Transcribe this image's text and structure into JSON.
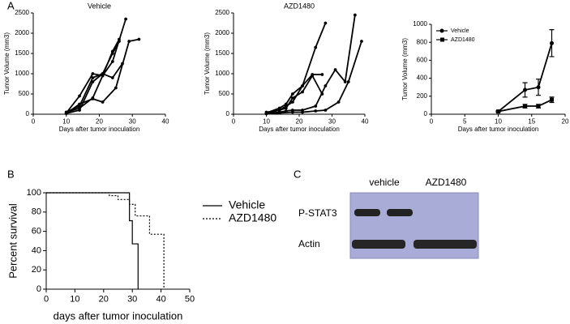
{
  "panels": {
    "a": "A",
    "b": "B",
    "c": "C"
  },
  "blot": {
    "lanes": [
      "vehicle",
      "AZD1480"
    ],
    "rows": [
      "P-STAT3",
      "Actin"
    ]
  },
  "chart_data": [
    {
      "type": "line",
      "title": "Vehicle",
      "xlabel": "Days after tumor inoculation",
      "ylabel": "Tumor Volume (mm3)",
      "xlim": [
        0,
        40
      ],
      "ylim": [
        0,
        2500
      ],
      "xticks": [
        0,
        10,
        20,
        30,
        40
      ],
      "yticks": [
        0,
        500,
        1000,
        1500,
        2000,
        2500
      ],
      "series": [
        {
          "color": "#000000",
          "marker": "circle",
          "x": [
            10,
            14,
            18,
            21,
            24,
            28
          ],
          "values": [
            50,
            150,
            400,
            950,
            1300,
            2350
          ]
        },
        {
          "color": "#000000",
          "marker": "circle",
          "x": [
            10,
            14,
            18,
            21,
            24,
            26
          ],
          "values": [
            50,
            200,
            900,
            1000,
            1500,
            1800
          ]
        },
        {
          "color": "#000000",
          "marker": "circle",
          "x": [
            10,
            14,
            18,
            21,
            24,
            26
          ],
          "values": [
            30,
            450,
            1000,
            950,
            1550,
            1850
          ]
        },
        {
          "color": "#000000",
          "marker": "circle",
          "x": [
            10,
            14,
            18,
            21,
            24,
            27
          ],
          "values": [
            20,
            100,
            800,
            1000,
            900,
            1250
          ]
        },
        {
          "color": "#000000",
          "marker": "circle",
          "x": [
            10,
            14,
            18,
            21,
            25,
            29,
            32
          ],
          "values": [
            20,
            250,
            380,
            300,
            650,
            1800,
            1850
          ]
        }
      ]
    },
    {
      "type": "line",
      "title": "AZD1480",
      "xlabel": "Days after tumor inoculation",
      "ylabel": "Tumor Volume (mm3)",
      "xlim": [
        0,
        40
      ],
      "ylim": [
        0,
        2500
      ],
      "xticks": [
        0,
        10,
        20,
        30,
        40
      ],
      "yticks": [
        0,
        500,
        1000,
        1500,
        2000,
        2500
      ],
      "series": [
        {
          "color": "#000000",
          "marker": "circle",
          "x": [
            10,
            14,
            16,
            18,
            21,
            25,
            28
          ],
          "values": [
            50,
            100,
            200,
            300,
            700,
            1650,
            2250
          ]
        },
        {
          "color": "#000000",
          "marker": "circle",
          "x": [
            10,
            14,
            16,
            18,
            21,
            24,
            27
          ],
          "values": [
            30,
            150,
            250,
            500,
            700,
            980,
            980
          ]
        },
        {
          "color": "#000000",
          "marker": "circle",
          "x": [
            10,
            14,
            16,
            18,
            21,
            24,
            27
          ],
          "values": [
            20,
            100,
            150,
            400,
            550,
            950,
            500
          ]
        },
        {
          "color": "#000000",
          "marker": "circle",
          "x": [
            10,
            14,
            16,
            18,
            21,
            25,
            28,
            31,
            34,
            37
          ],
          "values": [
            20,
            50,
            80,
            100,
            100,
            200,
            700,
            1100,
            800,
            2450
          ]
        },
        {
          "color": "#000000",
          "marker": "circle",
          "x": [
            10,
            14,
            18,
            21,
            25,
            28,
            32,
            35,
            39
          ],
          "values": [
            10,
            30,
            50,
            50,
            80,
            100,
            300,
            800,
            1800
          ]
        }
      ]
    },
    {
      "type": "line",
      "xlabel": "Days after tumor inoculation",
      "ylabel": "Tumor Volume (mm3)",
      "xlim": [
        0,
        20
      ],
      "ylim": [
        0,
        1000
      ],
      "xticks": [
        0,
        5,
        10,
        15,
        20
      ],
      "yticks": [
        0,
        200,
        400,
        600,
        800,
        1000
      ],
      "legend": "upper left",
      "series": [
        {
          "name": "Vehicle",
          "color": "#000000",
          "marker": "circle",
          "x": [
            10,
            14,
            16,
            18
          ],
          "values": [
            30,
            270,
            300,
            790
          ],
          "errors": [
            10,
            80,
            90,
            150
          ]
        },
        {
          "name": "AZD1480",
          "color": "#000000",
          "marker": "square",
          "x": [
            10,
            14,
            16,
            18
          ],
          "values": [
            30,
            90,
            90,
            160
          ],
          "errors": [
            5,
            20,
            20,
            30
          ]
        }
      ]
    },
    {
      "type": "step",
      "xlabel": "days after tumor inoculation",
      "ylabel": "Percent survival",
      "xlim": [
        0,
        50
      ],
      "ylim": [
        0,
        100
      ],
      "xticks": [
        0,
        10,
        20,
        30,
        40,
        50
      ],
      "yticks": [
        0,
        20,
        40,
        60,
        80,
        100
      ],
      "legend": "right",
      "series": [
        {
          "name": "Vehicle",
          "color": "#000000",
          "linestyle": "solid",
          "x": [
            0,
            29,
            30,
            32
          ],
          "values": [
            100,
            71,
            47,
            0
          ]
        },
        {
          "name": "AZD1480",
          "color": "#000000",
          "linestyle": "dotted",
          "x": [
            0,
            22,
            25,
            29,
            31,
            36,
            41
          ],
          "values": [
            100,
            97,
            93,
            88,
            76,
            57,
            0
          ]
        }
      ]
    }
  ]
}
